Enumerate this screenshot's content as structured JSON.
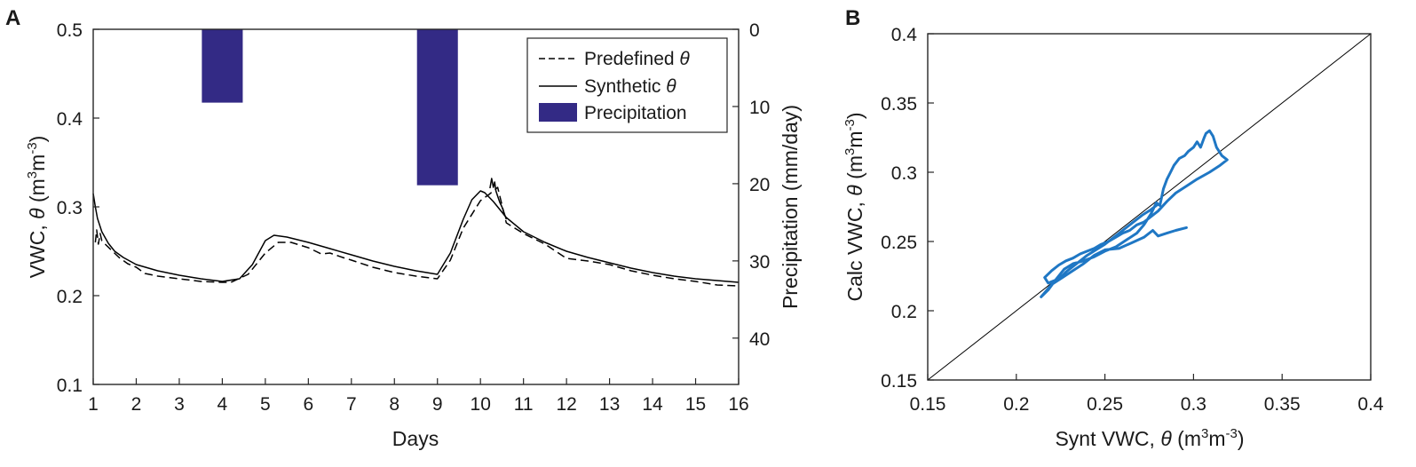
{
  "panels": {
    "a": "A",
    "b": "B"
  },
  "chart_data": [
    {
      "type": "line",
      "panel": "A",
      "xlabel": "Days",
      "ylabel": "VWC, θ (m³m⁻³)",
      "ylabel_parts": {
        "main": "VWC, ",
        "theta": "θ",
        "open": " (m",
        "exp1": "3",
        "mid": "m",
        "exp2": "-3",
        "close": ")"
      },
      "y2label": "Precipitation (mm/day)",
      "xlim": [
        1,
        16
      ],
      "ylim": [
        0.1,
        0.5
      ],
      "y2lim": [
        0,
        46
      ],
      "y2_inverted": true,
      "xticks": [
        "1",
        "2",
        "3",
        "4",
        "5",
        "6",
        "7",
        "8",
        "9",
        "10",
        "11",
        "12",
        "13",
        "14",
        "15",
        "16"
      ],
      "yticks": [
        "0.1",
        "0.2",
        "0.3",
        "0.4",
        "0.5"
      ],
      "y2ticks": [
        "0",
        "10",
        "20",
        "30",
        "40"
      ],
      "legend": {
        "position": "top-right",
        "entries": [
          {
            "label": "Predefined",
            "symbol": "θ",
            "style": "dashed"
          },
          {
            "label": "Synthetic",
            "symbol": "θ",
            "style": "solid"
          },
          {
            "label": "Precipitation",
            "symbol": "",
            "style": "bar"
          }
        ]
      },
      "colors": {
        "precipitation": "#332a85",
        "lines": "#000000"
      },
      "bars": [
        {
          "name": "Precipitation",
          "x": 4,
          "width": 0.95,
          "value": 9.5
        },
        {
          "name": "Precipitation",
          "x": 9,
          "width": 0.95,
          "value": 20.2
        }
      ],
      "series": [
        {
          "name": "Synthetic θ",
          "style": "solid",
          "x": [
            1,
            1.05,
            1.1,
            1.2,
            1.35,
            1.5,
            1.7,
            2,
            2.5,
            3,
            3.5,
            4,
            4.4,
            4.7,
            5,
            5.2,
            5.5,
            6,
            6.5,
            7,
            7.5,
            8,
            8.5,
            9,
            9.3,
            9.6,
            9.8,
            10,
            10.1,
            10.3,
            10.6,
            11,
            11.5,
            12,
            12.5,
            13,
            13.5,
            14,
            14.5,
            15,
            15.5,
            16
          ],
          "y": [
            0.315,
            0.3,
            0.287,
            0.272,
            0.259,
            0.25,
            0.243,
            0.235,
            0.228,
            0.223,
            0.219,
            0.216,
            0.219,
            0.235,
            0.262,
            0.268,
            0.266,
            0.26,
            0.253,
            0.246,
            0.239,
            0.233,
            0.228,
            0.224,
            0.248,
            0.286,
            0.308,
            0.318,
            0.316,
            0.306,
            0.288,
            0.272,
            0.26,
            0.25,
            0.243,
            0.237,
            0.231,
            0.226,
            0.222,
            0.219,
            0.217,
            0.215
          ]
        },
        {
          "name": "Predefined θ",
          "style": "dashed",
          "x": [
            1.05,
            1.08,
            1.12,
            1.16,
            1.2,
            1.3,
            1.45,
            1.6,
            1.8,
            2,
            2.2,
            2.5,
            3,
            3.5,
            4,
            4.2,
            4.6,
            5,
            5.3,
            5.6,
            6,
            6.3,
            6.5,
            6.8,
            7,
            7.5,
            8,
            8.5,
            9,
            9.3,
            9.6,
            10,
            10.2,
            10.4,
            10.6,
            11,
            11.5,
            12,
            12.5,
            13,
            13.5,
            14,
            14.5,
            15,
            15.5,
            16
          ],
          "y": [
            0.26,
            0.274,
            0.258,
            0.27,
            0.262,
            0.257,
            0.25,
            0.243,
            0.236,
            0.232,
            0.225,
            0.222,
            0.219,
            0.216,
            0.215,
            0.215,
            0.224,
            0.248,
            0.26,
            0.26,
            0.254,
            0.247,
            0.248,
            0.243,
            0.24,
            0.232,
            0.226,
            0.222,
            0.219,
            0.24,
            0.276,
            0.307,
            0.314,
            0.322,
            0.282,
            0.27,
            0.258,
            0.242,
            0.239,
            0.235,
            0.228,
            0.223,
            0.219,
            0.216,
            0.212,
            0.211
          ]
        },
        {
          "name": "Predefined θ fragment",
          "style": "solid",
          "x": [
            10.22,
            10.26,
            10.3,
            10.33,
            10.36,
            10.4,
            10.45,
            10.5,
            10.55,
            10.6
          ],
          "y": [
            0.321,
            0.332,
            0.322,
            0.328,
            0.318,
            0.312,
            0.305,
            0.3,
            0.293,
            0.286
          ]
        }
      ]
    },
    {
      "type": "line",
      "panel": "B",
      "xlabel": "Synt VWC, θ (m³m⁻³)",
      "xlabel_parts": {
        "main": "Synt VWC, ",
        "theta": "θ",
        "open": " (m",
        "exp1": "3",
        "mid": "m",
        "exp2": "-3",
        "close": ")"
      },
      "ylabel": "Calc VWC, θ (m³m⁻³)",
      "ylabel_parts": {
        "main": "Calc VWC, ",
        "theta": "θ",
        "open": " (m",
        "exp1": "3",
        "mid": "m",
        "exp2": "-3",
        "close": ")"
      },
      "xlim": [
        0.15,
        0.4
      ],
      "ylim": [
        0.15,
        0.4
      ],
      "xticks": [
        "0.15",
        "0.2",
        "0.25",
        "0.3",
        "0.35",
        "0.4"
      ],
      "yticks": [
        "0.15",
        "0.2",
        "0.25",
        "0.3",
        "0.35",
        "0.4"
      ],
      "colors": {
        "data": "#1f77c4",
        "identity": "#000000"
      },
      "series": [
        {
          "name": "1:1 line",
          "x": [
            0.15,
            0.4
          ],
          "y": [
            0.15,
            0.4
          ]
        },
        {
          "name": "Calculated vs synthetic",
          "x": [
            0.296,
            0.29,
            0.285,
            0.28,
            0.277,
            0.272,
            0.265,
            0.258,
            0.25,
            0.244,
            0.238,
            0.232,
            0.226,
            0.22,
            0.216,
            0.214,
            0.218,
            0.222,
            0.227,
            0.232,
            0.238,
            0.244,
            0.25,
            0.256,
            0.262,
            0.268,
            0.272,
            0.276,
            0.279,
            0.281,
            0.283,
            0.285,
            0.287,
            0.289,
            0.292,
            0.295,
            0.297,
            0.3,
            0.302,
            0.304,
            0.306,
            0.307,
            0.309,
            0.311,
            0.313,
            0.316,
            0.318,
            0.319,
            0.315,
            0.309,
            0.302,
            0.296,
            0.29,
            0.285,
            0.28,
            0.276,
            0.272,
            0.268,
            0.264,
            0.26,
            0.256,
            0.252,
            0.248,
            0.244,
            0.24,
            0.236,
            0.232,
            0.228,
            0.224,
            0.22,
            0.216,
            0.218,
            0.222,
            0.225,
            0.228,
            0.232,
            0.236,
            0.24,
            0.245,
            0.25,
            0.255,
            0.26,
            0.266,
            0.271,
            0.276,
            0.28
          ],
          "y": [
            0.26,
            0.258,
            0.256,
            0.254,
            0.258,
            0.253,
            0.249,
            0.245,
            0.244,
            0.24,
            0.234,
            0.229,
            0.224,
            0.219,
            0.213,
            0.21,
            0.215,
            0.222,
            0.23,
            0.234,
            0.236,
            0.239,
            0.243,
            0.246,
            0.251,
            0.256,
            0.262,
            0.27,
            0.278,
            0.276,
            0.288,
            0.295,
            0.3,
            0.305,
            0.31,
            0.312,
            0.315,
            0.318,
            0.322,
            0.318,
            0.325,
            0.328,
            0.33,
            0.326,
            0.318,
            0.312,
            0.31,
            0.309,
            0.305,
            0.3,
            0.295,
            0.29,
            0.285,
            0.279,
            0.272,
            0.268,
            0.264,
            0.262,
            0.258,
            0.256,
            0.253,
            0.25,
            0.248,
            0.245,
            0.243,
            0.241,
            0.238,
            0.236,
            0.233,
            0.229,
            0.224,
            0.22,
            0.222,
            0.224,
            0.228,
            0.232,
            0.236,
            0.24,
            0.244,
            0.248,
            0.253,
            0.258,
            0.264,
            0.269,
            0.273,
            0.277
          ]
        }
      ]
    }
  ]
}
